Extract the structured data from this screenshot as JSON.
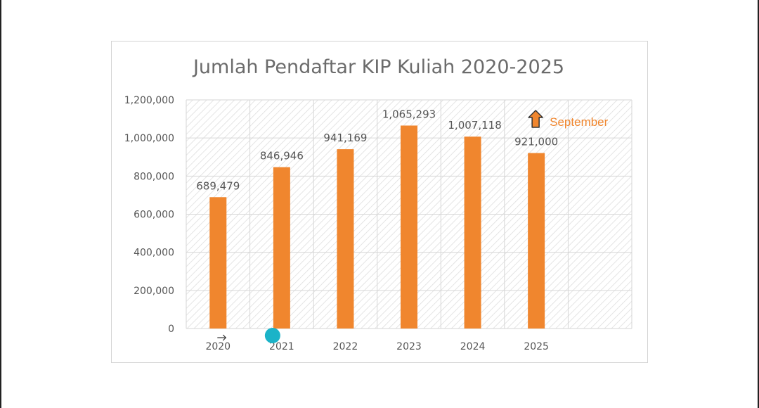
{
  "colors": {
    "bar": "#f0862e",
    "grid": "#d6d6d6",
    "marker": "#1bb3c8",
    "annotation": "#f0862e"
  },
  "chart_data": {
    "type": "bar",
    "title": "Jumlah Pendaftar KIP Kuliah 2020-2025",
    "xlabel": "",
    "ylabel": "",
    "categories": [
      "2020",
      "2021",
      "2022",
      "2023",
      "2024",
      "2025"
    ],
    "values": [
      689479,
      846946,
      941169,
      1065293,
      1007118,
      921000
    ],
    "data_labels": [
      "689,479",
      "846,946",
      "941,169",
      "1,065,293",
      "1,007,118",
      "921,000"
    ],
    "yticks": [
      "0",
      "200,000",
      "400,000",
      "600,000",
      "800,000",
      "1,000,000",
      "1,200,000"
    ],
    "ylim": [
      0,
      1200000
    ],
    "grid": true,
    "annotation": {
      "text": "September",
      "icon": "up-arrow-icon",
      "target_category": "2025"
    },
    "overlays": [
      {
        "icon": "right-arrow-icon",
        "near_category": "2020"
      },
      {
        "icon": "cyan-dot-marker",
        "near_category": "2021"
      }
    ]
  }
}
